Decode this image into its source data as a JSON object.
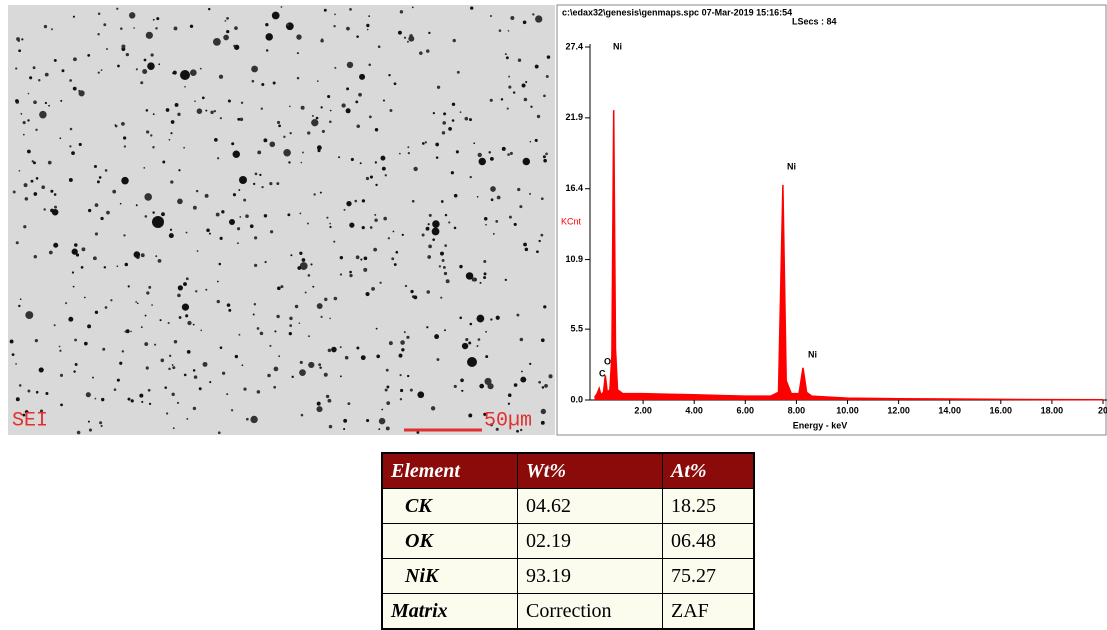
{
  "chart_data": {
    "type": "area",
    "title": "c:\\edax32\\genesis\\genmaps.spc  07-Mar-2019 15:16:54",
    "subtitle": "LSecs : 84",
    "xlabel": "Energy - keV",
    "ylabel": "KCnt",
    "x": [
      0.1,
      0.2,
      0.28,
      0.35,
      0.45,
      0.52,
      0.6,
      0.7,
      0.78,
      0.85,
      0.92,
      1.0,
      1.2,
      1.5,
      2.0,
      3.0,
      4.0,
      5.0,
      6.0,
      7.0,
      7.3,
      7.47,
      7.6,
      7.8,
      8.1,
      8.26,
      8.4,
      8.6,
      9.0,
      10.0,
      12.0,
      14.0,
      16.0,
      18.0,
      20.0
    ],
    "values": [
      0.2,
      0.5,
      0.9,
      0.4,
      0.6,
      1.9,
      0.6,
      0.8,
      3.5,
      22.5,
      4.0,
      0.8,
      0.5,
      0.5,
      0.5,
      0.45,
      0.4,
      0.35,
      0.3,
      0.3,
      0.6,
      16.7,
      1.5,
      0.5,
      0.5,
      2.5,
      0.6,
      0.3,
      0.25,
      0.15,
      0.1,
      0.08,
      0.05,
      0.03,
      0.02
    ],
    "color": "#ff0000",
    "xlim": [
      0,
      20
    ],
    "ylim": [
      0,
      27.4
    ],
    "xticks": [
      {
        "value": 2,
        "label": "2.00"
      },
      {
        "value": 4,
        "label": "4.00"
      },
      {
        "value": 6,
        "label": "6.00"
      },
      {
        "value": 8,
        "label": "8.00"
      },
      {
        "value": 10,
        "label": "10.00"
      },
      {
        "value": 12,
        "label": "12.00"
      },
      {
        "value": 14,
        "label": "14.00"
      },
      {
        "value": 16,
        "label": "16.00"
      },
      {
        "value": 18,
        "label": "18.00"
      },
      20
    ],
    "yticks": [
      {
        "value": 0,
        "label": "0.0"
      },
      5.5,
      10.9,
      16.4,
      21.9,
      27.4
    ],
    "annotations": [
      "Ni",
      "Ni",
      "Ni",
      "O",
      "C"
    ]
  },
  "image": {
    "label": "SEI",
    "scale_bar": "50µm"
  },
  "table": {
    "header": [
      "Element",
      "Wt%",
      "At%"
    ],
    "rows": [
      [
        "CK",
        "04.62",
        "18.25"
      ],
      [
        "OK",
        "02.19",
        "06.48"
      ],
      [
        "NiK",
        "93.19",
        "75.27"
      ],
      [
        "Matrix",
        "Correction",
        "ZAF"
      ]
    ]
  }
}
